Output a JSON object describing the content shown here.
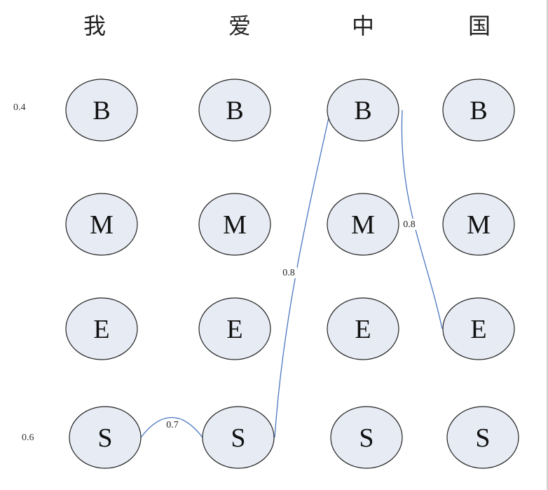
{
  "headers": [
    "我",
    "爱",
    "中",
    "国"
  ],
  "states": [
    "B",
    "M",
    "E",
    "S"
  ],
  "initial_probs": {
    "B": "0.4",
    "S": "0.6"
  },
  "edges": [
    {
      "from": {
        "col": 0,
        "state": "S"
      },
      "to": {
        "col": 1,
        "state": "S"
      },
      "label": "0.7"
    },
    {
      "from": {
        "col": 1,
        "state": "S"
      },
      "to": {
        "col": 2,
        "state": "B"
      },
      "label": "0.8"
    },
    {
      "from": {
        "col": 2,
        "state": "B"
      },
      "to": {
        "col": 3,
        "state": "E"
      },
      "label": "0.8"
    }
  ],
  "colors": {
    "node_fill": "#e6ebf4",
    "node_stroke": "#222222",
    "edge": "#4a76c0"
  }
}
